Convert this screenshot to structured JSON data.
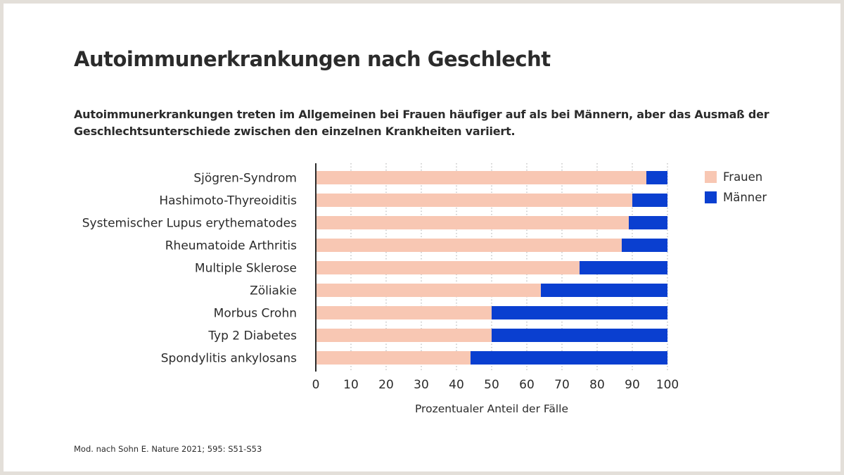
{
  "title": "Autoimmunerkrankungen nach Geschlecht",
  "subtitle": "Autoimmunerkrankungen treten im Allgemeinen bei Frauen häufiger auf als bei Männern, aber das Ausmaß der Geschlechtsunterschiede zwischen den einzelnen Krankheiten variiert.",
  "source": "Mod. nach Sohn E. Nature 2021; 595: S51-S53",
  "colors": {
    "frauen": "#f8c7b3",
    "maenner": "#0a3fd0",
    "grid": "#aaaaaa",
    "axis": "#2b2b2b"
  },
  "chart_data": {
    "type": "bar",
    "orientation": "horizontal",
    "stacked": true,
    "title": "",
    "xlabel": "Prozentualer Anteil der Fälle",
    "ylabel": "",
    "xlim": [
      0,
      100
    ],
    "xticks": [
      0,
      10,
      20,
      30,
      40,
      50,
      60,
      70,
      80,
      90,
      100
    ],
    "grid": "vertical dotted",
    "legend_position": "top-right",
    "categories": [
      "Sjögren-Syndrom",
      "Hashimoto-Thyreoiditis",
      "Systemischer Lupus erythematodes",
      "Rheumatoide Arthritis",
      "Multiple Sklerose",
      "Zöliakie",
      "Morbus Crohn",
      "Typ 2 Diabetes",
      "Spondylitis ankylosans"
    ],
    "series": [
      {
        "name": "Frauen",
        "values": [
          94,
          90,
          89,
          87,
          75,
          64,
          50,
          50,
          44
        ]
      },
      {
        "name": "Männer",
        "values": [
          6,
          10,
          11,
          13,
          25,
          36,
          50,
          50,
          56
        ]
      }
    ]
  }
}
